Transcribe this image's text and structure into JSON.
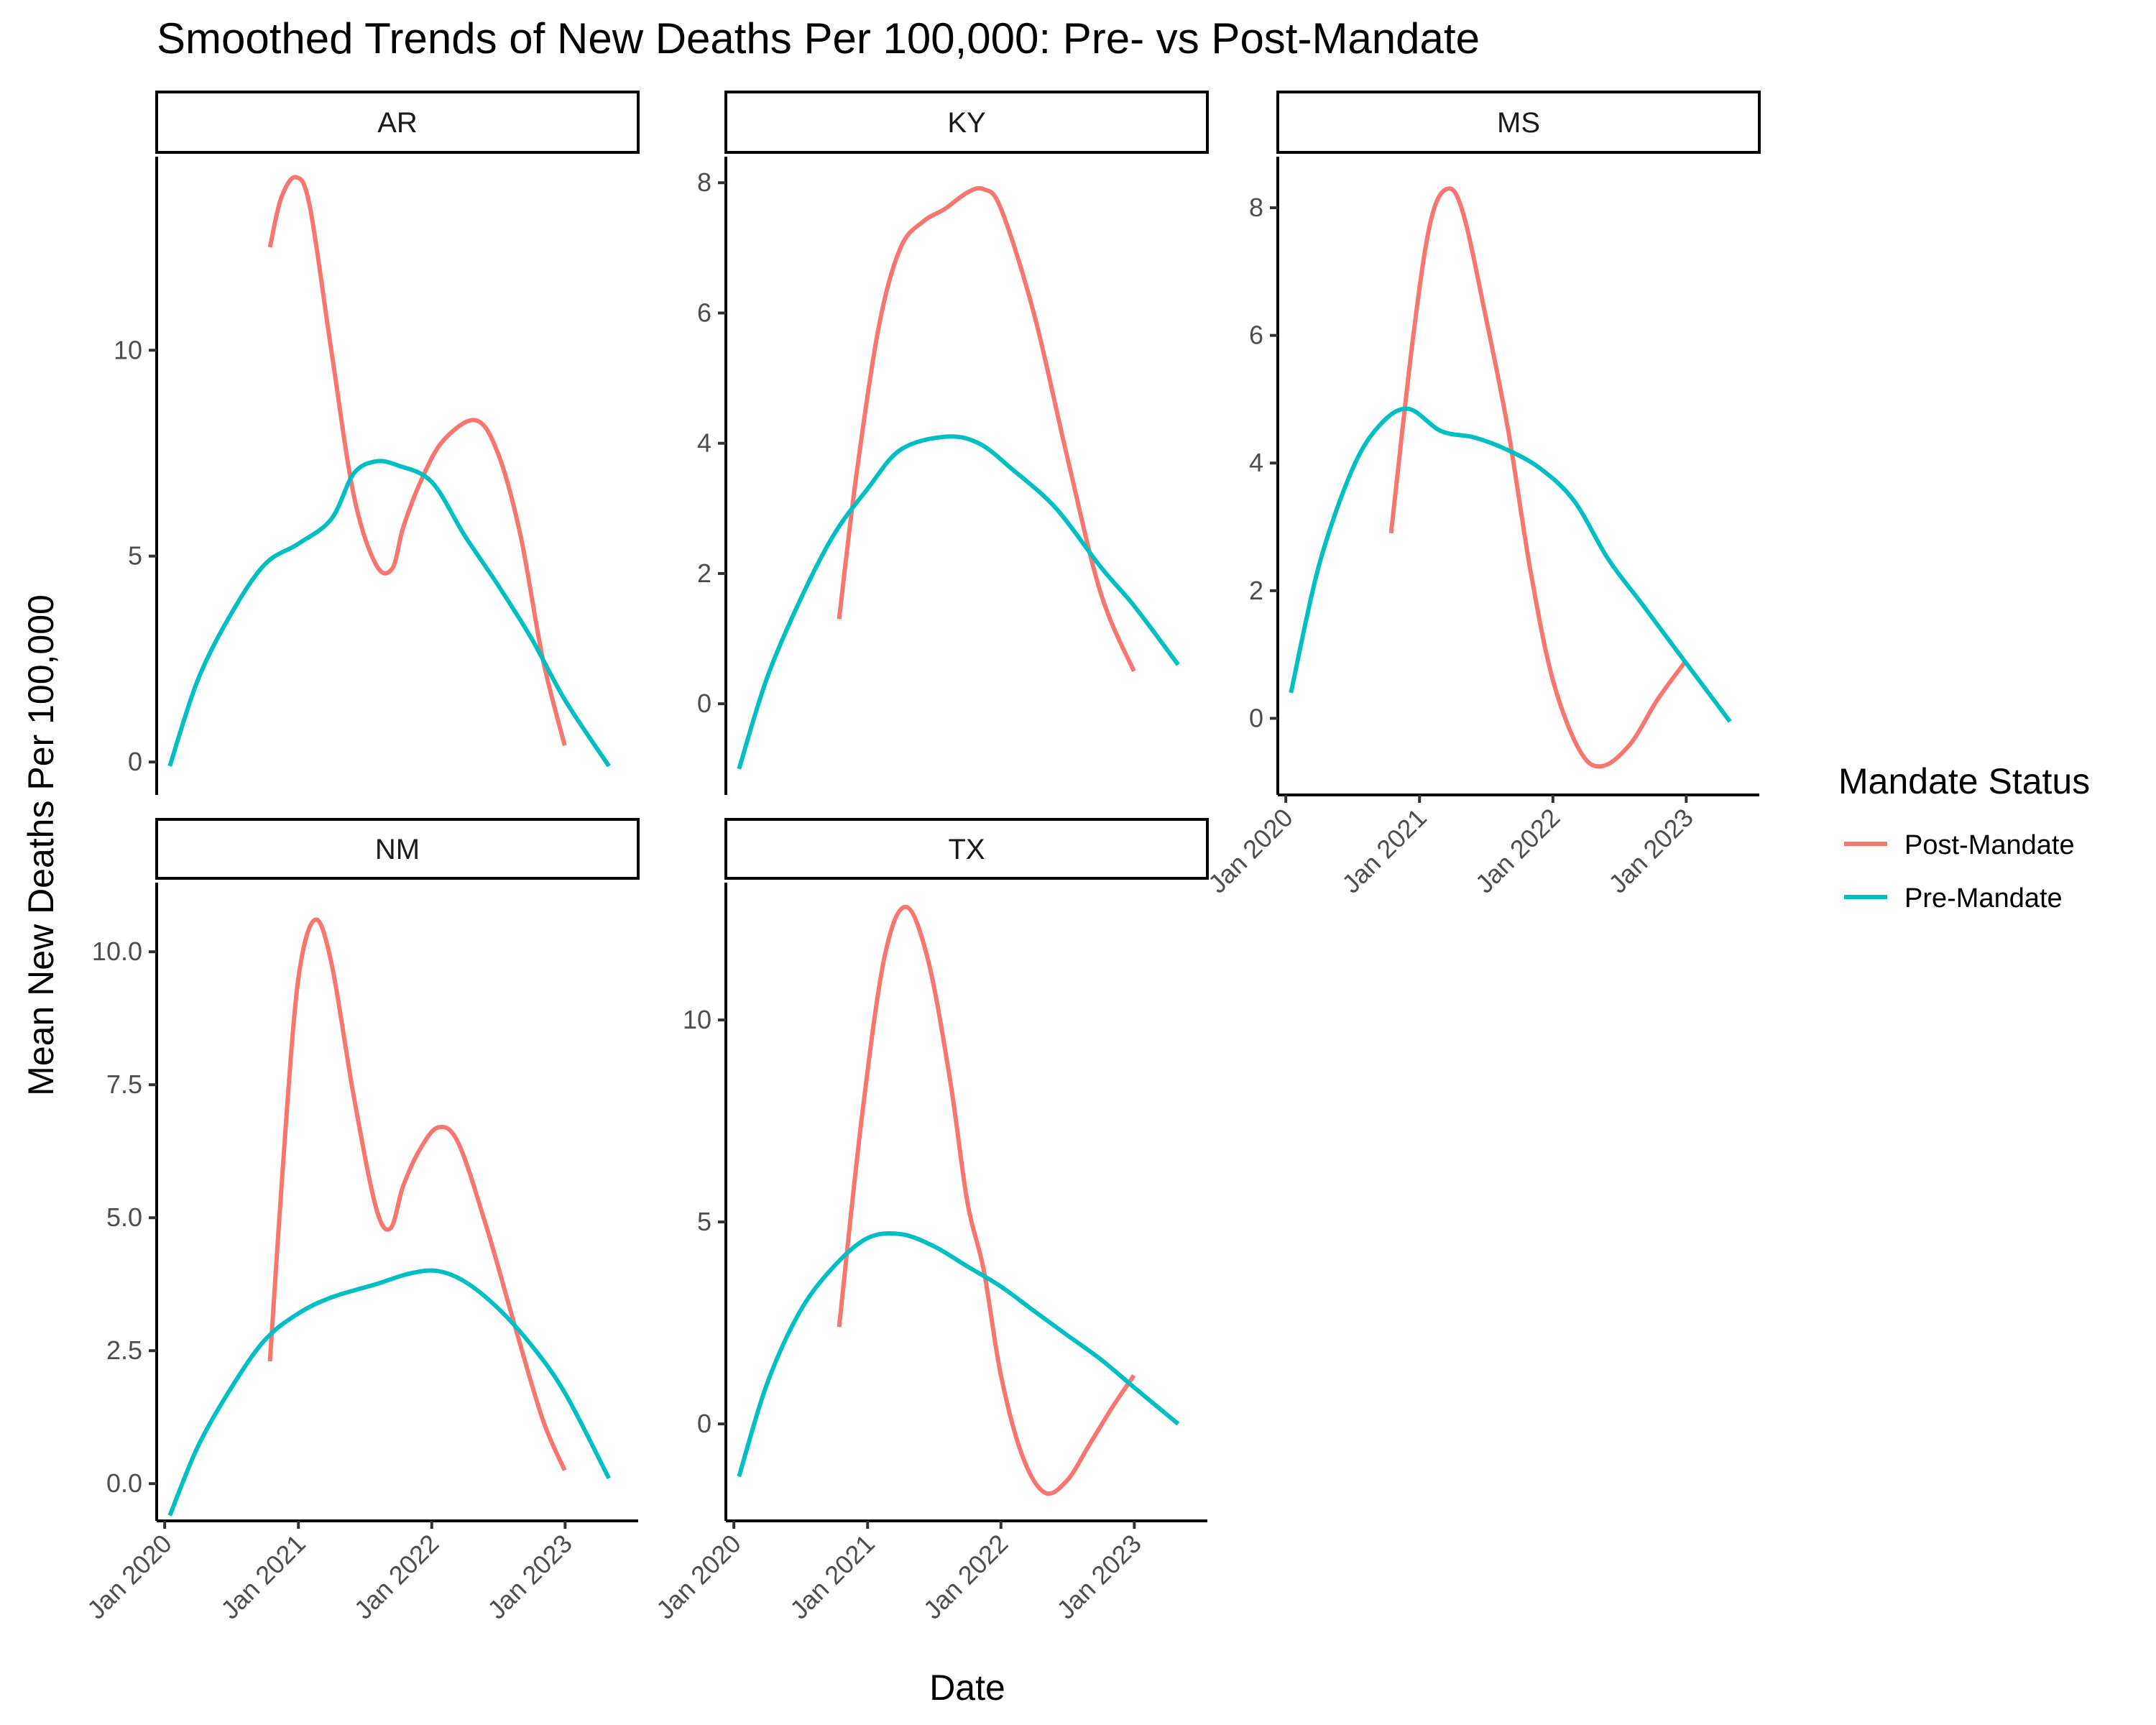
{
  "chart_data": {
    "type": "line",
    "title": "Smoothed Trends of New Deaths Per 100,000: Pre- vs Post-Mandate",
    "xlabel": "Date",
    "ylabel": "Mean New Deaths Per 100,000",
    "x_ticks": [
      "2020-01-01",
      "2021-01-01",
      "2022-01-01",
      "2023-01-01"
    ],
    "x_tick_labels": [
      "Jan 2020",
      "Jan 2021",
      "Jan 2022",
      "Jan 2023"
    ],
    "xlim": [
      "2019-12-10",
      "2023-07-20"
    ],
    "legend": {
      "title": "Mandate Status",
      "position": "right",
      "entries": [
        {
          "name": "Post-Mandate",
          "color": "#F8766D"
        },
        {
          "name": "Pre-Mandate",
          "color": "#00BFC4"
        }
      ]
    },
    "grid": false,
    "facets": [
      {
        "name": "AR",
        "ylim": [
          -0.8,
          14.7
        ],
        "y_ticks": [
          0,
          5,
          10
        ],
        "y_tick_labels": [
          "0",
          "5",
          "10"
        ],
        "series": [
          {
            "name": "Post-Mandate",
            "color": "#F8766D",
            "points": [
              [
                "2020-10-15",
                12.5
              ],
              [
                "2020-11-15",
                13.7
              ],
              [
                "2020-12-25",
                14.2
              ],
              [
                "2021-02-01",
                13.5
              ],
              [
                "2021-04-01",
                10.0
              ],
              [
                "2021-06-01",
                6.5
              ],
              [
                "2021-08-01",
                4.8
              ],
              [
                "2021-09-15",
                4.7
              ],
              [
                "2021-10-15",
                5.7
              ],
              [
                "2021-12-01",
                6.8
              ],
              [
                "2022-02-01",
                7.8
              ],
              [
                "2022-05-01",
                8.3
              ],
              [
                "2022-07-01",
                7.5
              ],
              [
                "2022-09-01",
                5.5
              ],
              [
                "2022-11-01",
                2.5
              ],
              [
                "2022-12-31",
                0.4
              ]
            ]
          },
          {
            "name": "Pre-Mandate",
            "color": "#00BFC4",
            "points": [
              [
                "2020-01-15",
                -0.1
              ],
              [
                "2020-04-01",
                2.0
              ],
              [
                "2020-07-01",
                3.6
              ],
              [
                "2020-10-01",
                4.8
              ],
              [
                "2021-01-01",
                5.3
              ],
              [
                "2021-04-01",
                5.9
              ],
              [
                "2021-06-01",
                7.0
              ],
              [
                "2021-08-01",
                7.3
              ],
              [
                "2021-10-01",
                7.2
              ],
              [
                "2022-01-01",
                6.8
              ],
              [
                "2022-04-01",
                5.5
              ],
              [
                "2022-07-01",
                4.3
              ],
              [
                "2022-10-01",
                3.0
              ],
              [
                "2023-01-01",
                1.5
              ],
              [
                "2023-05-01",
                -0.1
              ]
            ]
          }
        ]
      },
      {
        "name": "KY",
        "ylim": [
          -1.4,
          8.4
        ],
        "y_ticks": [
          0,
          2,
          4,
          6,
          8
        ],
        "y_tick_labels": [
          "0",
          "2",
          "4",
          "6",
          "8"
        ],
        "series": [
          {
            "name": "Post-Mandate",
            "color": "#F8766D",
            "points": [
              [
                "2020-10-15",
                1.3
              ],
              [
                "2020-12-01",
                3.5
              ],
              [
                "2021-02-01",
                5.8
              ],
              [
                "2021-04-01",
                7.0
              ],
              [
                "2021-06-01",
                7.4
              ],
              [
                "2021-08-01",
                7.6
              ],
              [
                "2021-10-01",
                7.85
              ],
              [
                "2021-11-15",
                7.9
              ],
              [
                "2022-01-01",
                7.6
              ],
              [
                "2022-04-01",
                6.0
              ],
              [
                "2022-07-01",
                3.8
              ],
              [
                "2022-10-01",
                1.7
              ],
              [
                "2022-12-31",
                0.5
              ]
            ]
          },
          {
            "name": "Pre-Mandate",
            "color": "#00BFC4",
            "points": [
              [
                "2020-01-15",
                -1.0
              ],
              [
                "2020-04-01",
                0.4
              ],
              [
                "2020-07-01",
                1.6
              ],
              [
                "2020-10-01",
                2.6
              ],
              [
                "2021-01-01",
                3.3
              ],
              [
                "2021-04-01",
                3.9
              ],
              [
                "2021-08-01",
                4.1
              ],
              [
                "2021-11-01",
                4.0
              ],
              [
                "2022-02-01",
                3.6
              ],
              [
                "2022-06-01",
                3.0
              ],
              [
                "2022-10-01",
                2.1
              ],
              [
                "2023-01-01",
                1.5
              ],
              [
                "2023-05-01",
                0.6
              ]
            ]
          }
        ]
      },
      {
        "name": "MS",
        "ylim": [
          -1.2,
          8.8
        ],
        "y_ticks": [
          0,
          2,
          4,
          6,
          8
        ],
        "y_tick_labels": [
          "0",
          "2",
          "4",
          "6",
          "8"
        ],
        "series": [
          {
            "name": "Post-Mandate",
            "color": "#F8766D",
            "points": [
              [
                "2020-10-15",
                2.9
              ],
              [
                "2020-12-15",
                6.0
              ],
              [
                "2021-02-01",
                7.8
              ],
              [
                "2021-03-20",
                8.3
              ],
              [
                "2021-05-01",
                7.9
              ],
              [
                "2021-07-01",
                6.3
              ],
              [
                "2021-09-01",
                4.5
              ],
              [
                "2021-11-01",
                2.3
              ],
              [
                "2022-01-01",
                0.6
              ],
              [
                "2022-03-15",
                -0.5
              ],
              [
                "2022-05-15",
                -0.75
              ],
              [
                "2022-08-01",
                -0.4
              ],
              [
                "2022-10-15",
                0.3
              ],
              [
                "2022-12-31",
                0.9
              ]
            ]
          },
          {
            "name": "Pre-Mandate",
            "color": "#00BFC4",
            "points": [
              [
                "2020-01-15",
                0.4
              ],
              [
                "2020-04-01",
                2.4
              ],
              [
                "2020-07-01",
                3.9
              ],
              [
                "2020-09-15",
                4.6
              ],
              [
                "2020-12-01",
                4.85
              ],
              [
                "2021-03-01",
                4.5
              ],
              [
                "2021-06-01",
                4.4
              ],
              [
                "2021-09-01",
                4.2
              ],
              [
                "2021-12-01",
                3.9
              ],
              [
                "2022-03-01",
                3.4
              ],
              [
                "2022-06-01",
                2.5
              ],
              [
                "2022-09-01",
                1.8
              ],
              [
                "2022-12-01",
                1.1
              ],
              [
                "2023-05-01",
                -0.05
              ]
            ]
          }
        ]
      },
      {
        "name": "NM",
        "ylim": [
          -0.7,
          11.3
        ],
        "y_ticks": [
          0,
          2.5,
          5,
          7.5,
          10
        ],
        "y_tick_labels": [
          "0.0",
          "2.5",
          "5.0",
          "7.5",
          "10.0"
        ],
        "series": [
          {
            "name": "Post-Mandate",
            "color": "#F8766D",
            "points": [
              [
                "2020-10-15",
                2.3
              ],
              [
                "2020-11-25",
                6.5
              ],
              [
                "2021-01-01",
                9.5
              ],
              [
                "2021-02-15",
                10.6
              ],
              [
                "2021-04-01",
                9.8
              ],
              [
                "2021-06-01",
                7.3
              ],
              [
                "2021-08-01",
                5.2
              ],
              [
                "2021-09-10",
                4.8
              ],
              [
                "2021-10-15",
                5.6
              ],
              [
                "2021-12-01",
                6.3
              ],
              [
                "2022-01-20",
                6.7
              ],
              [
                "2022-03-15",
                6.4
              ],
              [
                "2022-06-01",
                4.8
              ],
              [
                "2022-08-15",
                3.0
              ],
              [
                "2022-11-01",
                1.2
              ],
              [
                "2022-12-31",
                0.25
              ]
            ]
          },
          {
            "name": "Pre-Mandate",
            "color": "#00BFC4",
            "points": [
              [
                "2020-01-15",
                -0.6
              ],
              [
                "2020-04-01",
                0.7
              ],
              [
                "2020-07-01",
                1.8
              ],
              [
                "2020-10-01",
                2.7
              ],
              [
                "2021-01-01",
                3.2
              ],
              [
                "2021-04-01",
                3.5
              ],
              [
                "2021-08-01",
                3.75
              ],
              [
                "2021-11-01",
                3.95
              ],
              [
                "2022-01-15",
                4.0
              ],
              [
                "2022-04-01",
                3.8
              ],
              [
                "2022-07-01",
                3.3
              ],
              [
                "2022-10-01",
                2.6
              ],
              [
                "2023-01-01",
                1.7
              ],
              [
                "2023-05-01",
                0.1
              ]
            ]
          }
        ]
      },
      {
        "name": "TX",
        "ylim": [
          -2.4,
          13.4
        ],
        "y_ticks": [
          0,
          5,
          10
        ],
        "y_tick_labels": [
          "0",
          "5",
          "10"
        ],
        "series": [
          {
            "name": "Post-Mandate",
            "color": "#F8766D",
            "points": [
              [
                "2020-10-15",
                2.4
              ],
              [
                "2020-12-15",
                7.5
              ],
              [
                "2021-02-15",
                11.5
              ],
              [
                "2021-04-15",
                12.8
              ],
              [
                "2021-06-15",
                11.5
              ],
              [
                "2021-08-15",
                8.5
              ],
              [
                "2021-10-01",
                5.5
              ],
              [
                "2021-11-15",
                3.8
              ],
              [
                "2022-01-01",
                1.2
              ],
              [
                "2022-03-01",
                -0.8
              ],
              [
                "2022-05-01",
                -1.7
              ],
              [
                "2022-07-01",
                -1.4
              ],
              [
                "2022-09-01",
                -0.5
              ],
              [
                "2022-11-01",
                0.4
              ],
              [
                "2022-12-31",
                1.2
              ]
            ]
          },
          {
            "name": "Pre-Mandate",
            "color": "#00BFC4",
            "points": [
              [
                "2020-01-15",
                -1.3
              ],
              [
                "2020-04-01",
                1.0
              ],
              [
                "2020-07-01",
                2.8
              ],
              [
                "2020-10-01",
                3.9
              ],
              [
                "2021-01-01",
                4.6
              ],
              [
                "2021-04-01",
                4.7
              ],
              [
                "2021-07-01",
                4.4
              ],
              [
                "2021-10-01",
                3.9
              ],
              [
                "2022-01-01",
                3.4
              ],
              [
                "2022-04-01",
                2.8
              ],
              [
                "2022-07-01",
                2.2
              ],
              [
                "2022-10-01",
                1.6
              ],
              [
                "2023-01-01",
                0.9
              ],
              [
                "2023-05-01",
                0.0
              ]
            ]
          }
        ]
      }
    ]
  }
}
